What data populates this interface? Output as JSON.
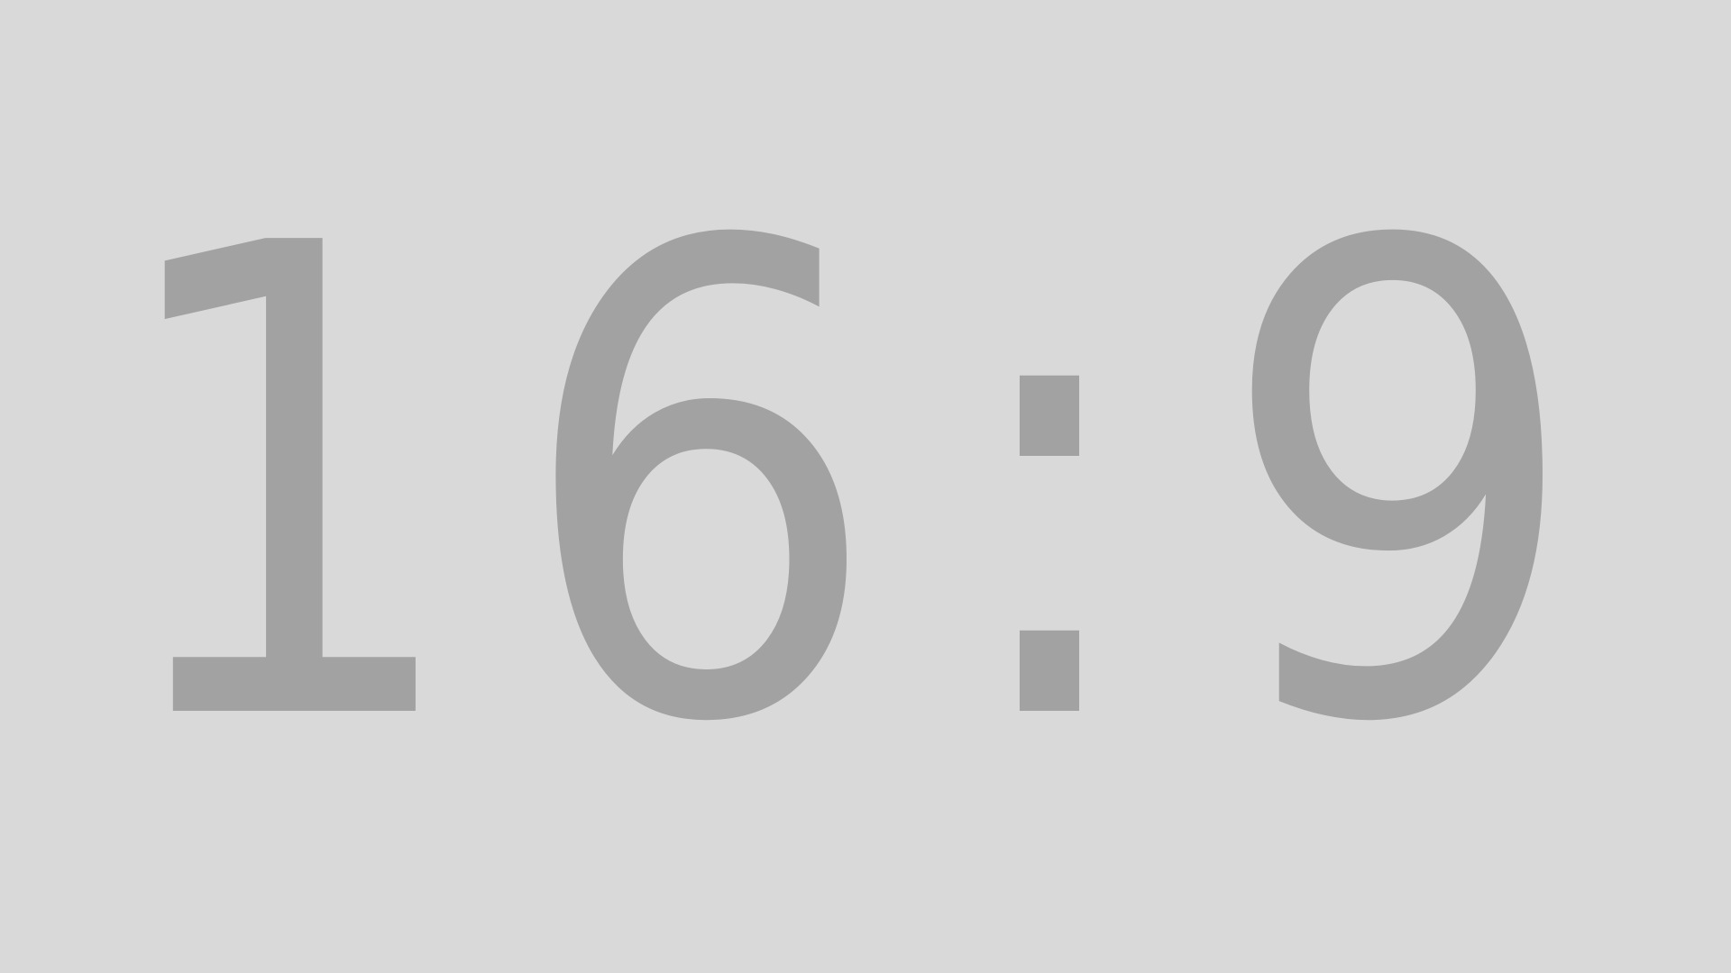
{
  "placeholder": {
    "ratio": "16:9",
    "first": "16",
    "separator": ":",
    "second": "9",
    "background_color": "#d9d9d9",
    "text_color": "#a2a2a2"
  }
}
